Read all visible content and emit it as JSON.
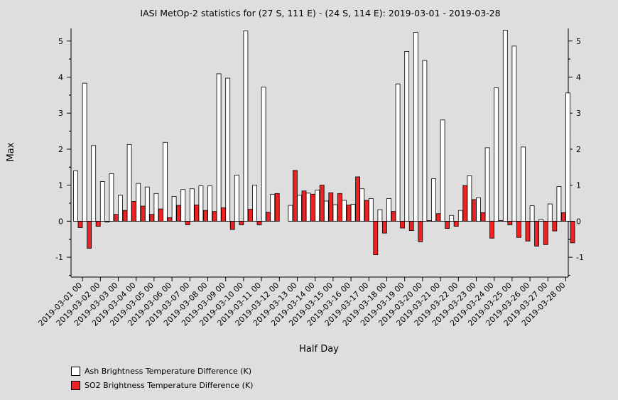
{
  "chart_data": {
    "type": "bar",
    "title": "IASI MetOp-2 statistics for (27 S, 111 E) - (24 S, 114 E): 2019-03-01 - 2019-03-28",
    "xlabel": "Half Day",
    "ylabel": "Max",
    "ylim": [
      -1.55,
      5.35
    ],
    "yticks": [
      -1,
      0,
      1,
      2,
      3,
      4,
      5
    ],
    "tick_labels": [
      "2019-03-01 00",
      "2019-03-02 00",
      "2019-03-03 00",
      "2019-03-04 00",
      "2019-03-05 00",
      "2019-03-06 00",
      "2019-03-07 00",
      "2019-03-08 00",
      "2019-03-09 00",
      "2019-03-10 00",
      "2019-03-11 00",
      "2019-03-12 00",
      "2019-03-13 00",
      "2019-03-14 00",
      "2019-03-15 00",
      "2019-03-16 00",
      "2019-03-17 00",
      "2019-03-18 00",
      "2019-03-19 00",
      "2019-03-20 00",
      "2019-03-21 00",
      "2019-03-22 00",
      "2019-03-23 00",
      "2019-03-24 00",
      "2019-03-25 00",
      "2019-03-26 00",
      "2019-03-27 00",
      "2019-03-28 00"
    ],
    "grid": false,
    "legend_position": "bottom-left",
    "series": [
      {
        "name": "Ash Brightness Temperature Difference (K)",
        "color": "#ffffff",
        "values": [
          1.4,
          3.83,
          2.1,
          1.1,
          1.32,
          0.72,
          2.13,
          1.05,
          0.95,
          0.77,
          2.19,
          0.69,
          0.88,
          0.9,
          0.98,
          0.98,
          4.09,
          3.97,
          1.28,
          5.28,
          1.0,
          3.72,
          0.75,
          null,
          0.44,
          0.72,
          0.78,
          0.86,
          0.56,
          0.46,
          0.58,
          0.47,
          0.9,
          0.63,
          0.32,
          0.63,
          3.81,
          4.71,
          5.24,
          4.46,
          1.18,
          2.81,
          0.16,
          0.3,
          1.26,
          0.65,
          2.04,
          3.7,
          5.3,
          4.86,
          2.06,
          0.43,
          0.05,
          0.48,
          0.96,
          3.56
        ]
      },
      {
        "name": "SO2 Brightness Temperature Difference (K)",
        "color": "#ee2222",
        "values": [
          -0.18,
          -0.75,
          -0.14,
          -0.02,
          0.19,
          0.3,
          0.55,
          0.42,
          0.19,
          0.34,
          0.1,
          0.44,
          -0.1,
          0.45,
          0.3,
          0.27,
          0.37,
          -0.23,
          -0.1,
          0.33,
          -0.1,
          0.25,
          0.77,
          null,
          1.41,
          0.84,
          0.75,
          1.0,
          0.79,
          0.77,
          0.45,
          1.23,
          0.58,
          -0.93,
          -0.33,
          0.27,
          -0.19,
          -0.26,
          -0.57,
          0.02,
          0.21,
          -0.2,
          -0.14,
          0.99,
          0.6,
          0.24,
          -0.47,
          0.02,
          -0.1,
          -0.45,
          -0.55,
          -0.69,
          -0.65,
          -0.27,
          0.24,
          -0.6
        ]
      }
    ]
  }
}
